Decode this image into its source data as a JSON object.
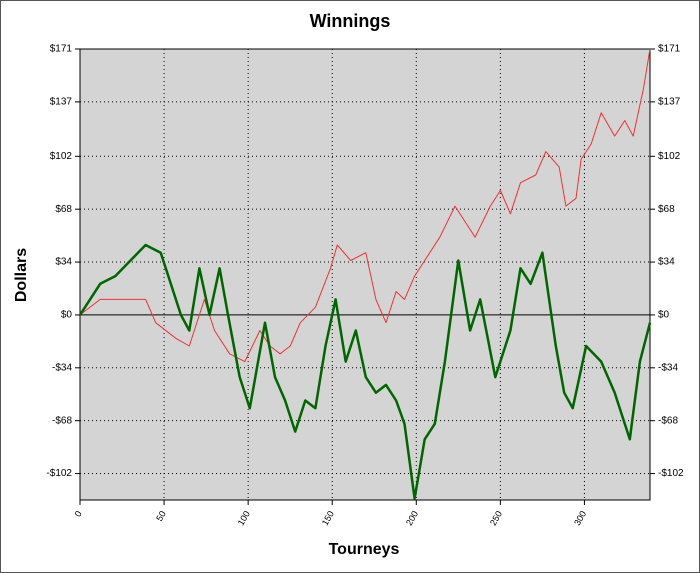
{
  "chart_data": {
    "type": "line",
    "title": "Winnings",
    "x_label": "Tourneys",
    "y_label": "Dollars",
    "xlim": [
      0,
      339
    ],
    "xticks": [
      0,
      50,
      100,
      150,
      200,
      250,
      300
    ],
    "ylim": [
      -119,
      171
    ],
    "yticks": [
      {
        "value": -102,
        "label": "-$102"
      },
      {
        "value": -68,
        "label": "-$68"
      },
      {
        "value": -34,
        "label": "-$34"
      },
      {
        "value": 0,
        "label": "$0"
      },
      {
        "value": 34,
        "label": "$34"
      },
      {
        "value": 68,
        "label": "$68"
      },
      {
        "value": 102,
        "label": "$102"
      },
      {
        "value": 137,
        "label": "$137"
      },
      {
        "value": 171,
        "label": "$171"
      }
    ],
    "grid": true,
    "series": [
      {
        "color": "#ee3333",
        "width": 1,
        "x": [
          0,
          12,
          30,
          39,
          45,
          57,
          65,
          74,
          80,
          89,
          98,
          107,
          113,
          119,
          125,
          131,
          140,
          149,
          153,
          161,
          170,
          176,
          182,
          188,
          193,
          199,
          205,
          214,
          223,
          229,
          235,
          244,
          250,
          256,
          262,
          271,
          277,
          285,
          289,
          295,
          298,
          304,
          310,
          318,
          324,
          329,
          335,
          339
        ],
        "values": [
          0,
          10,
          10,
          10,
          -5,
          -15,
          -20,
          10,
          -10,
          -25,
          -30,
          -10,
          -20,
          -25,
          -20,
          -5,
          5,
          30,
          45,
          35,
          40,
          10,
          -5,
          15,
          10,
          25,
          35,
          50,
          70,
          60,
          50,
          70,
          80,
          65,
          85,
          90,
          105,
          95,
          70,
          75,
          100,
          110,
          130,
          115,
          125,
          115,
          145,
          171
        ]
      },
      {
        "color": "#006600",
        "width": 2.5,
        "x": [
          0,
          12,
          21,
          39,
          48,
          51,
          60,
          65,
          71,
          77,
          83,
          88,
          95,
          101,
          110,
          116,
          122,
          128,
          134,
          140,
          146,
          152,
          158,
          164,
          170,
          176,
          182,
          188,
          193,
          199,
          205,
          211,
          217,
          225,
          232,
          238,
          247,
          256,
          262,
          268,
          275,
          283,
          288,
          293,
          301,
          310,
          318,
          327,
          333,
          339
        ],
        "values": [
          0,
          20,
          25,
          45,
          40,
          30,
          0,
          -10,
          30,
          0,
          30,
          0,
          -40,
          -60,
          -5,
          -40,
          -55,
          -75,
          -55,
          -60,
          -20,
          10,
          -30,
          -10,
          -40,
          -50,
          -45,
          -55,
          -70,
          -118,
          -80,
          -70,
          -30,
          35,
          -10,
          10,
          -40,
          -10,
          30,
          20,
          40,
          -20,
          -50,
          -60,
          -20,
          -30,
          -50,
          -80,
          -30,
          -5
        ]
      }
    ]
  }
}
